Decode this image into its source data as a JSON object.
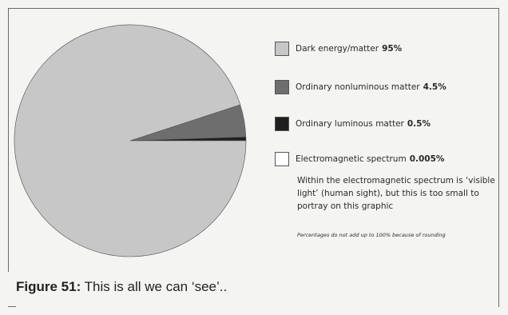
{
  "chart_data": {
    "type": "pie",
    "series": [
      {
        "name": "Dark energy/matter",
        "value_label": "95%",
        "value": 95,
        "color": "#c7c7c7"
      },
      {
        "name": "Ordinary nonluminous matter",
        "value_label": "4.5%",
        "value": 4.5,
        "color": "#6e6e6e"
      },
      {
        "name": "Ordinary luminous matter",
        "value_label": "0.5%",
        "value": 0.5,
        "color": "#1f1f1f"
      },
      {
        "name": "Electromagnetic spectrum",
        "value_label": "0.005%",
        "value": 0.005,
        "color": "#ffffff"
      }
    ],
    "note": "Within the electromagnetic spectrum is ‘visible light’ (human sight), but this is too small to portray on this graphic",
    "footnote": "Percentages do not add up to 100% because of rounding"
  },
  "caption": {
    "label": "Figure 51:",
    "text": "This is all we can ‘see’.."
  }
}
